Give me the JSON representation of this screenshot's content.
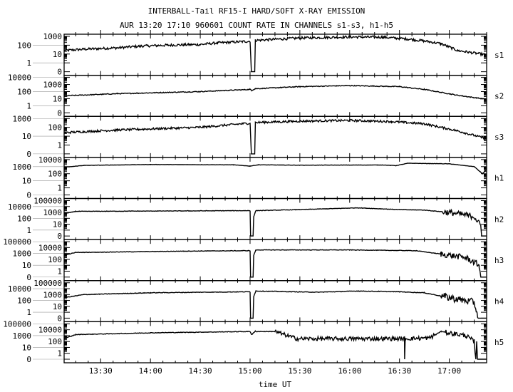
{
  "chart_data": {
    "type": "line",
    "title": "INTERBALL-Tail RF15-I HARD/SOFT X-RAY EMISSION",
    "subtitle": "AUR 13:20 17:10 960601  COUNT RATE IN CHANNELS s1-s3, h1-h5",
    "xlabel": "time UT",
    "x_units": "minutes after 13:00 UT",
    "xlim": [
      8,
      262.5
    ],
    "x_ticks": [
      {
        "value": 30,
        "label": "13:30"
      },
      {
        "value": 60,
        "label": "14:00"
      },
      {
        "value": 90,
        "label": "14:30"
      },
      {
        "value": 120,
        "label": "15:00"
      },
      {
        "value": 150,
        "label": "15:30"
      },
      {
        "value": 180,
        "label": "16:00"
      },
      {
        "value": 210,
        "label": "16:30"
      },
      {
        "value": 240,
        "label": "17:00"
      }
    ],
    "x_minor_step": 7.5,
    "yscale": "log (with 0 level)",
    "panels": [
      {
        "name": "s1",
        "y_ticks": [
          "0",
          "1",
          "10",
          "100",
          "1000"
        ],
        "noise": 0.14,
        "noisy": [],
        "points": [
          [
            8,
            25
          ],
          [
            20,
            35
          ],
          [
            40,
            50
          ],
          [
            55,
            80
          ],
          [
            70,
            100
          ],
          [
            90,
            120
          ],
          [
            100,
            180
          ],
          [
            120,
            280
          ],
          [
            120.8,
            0
          ],
          [
            122.8,
            0
          ],
          [
            123.2,
            350
          ],
          [
            150,
            650
          ],
          [
            180,
            850
          ],
          [
            200,
            800
          ],
          [
            215,
            500
          ],
          [
            225,
            300
          ],
          [
            235,
            150
          ],
          [
            245,
            25
          ],
          [
            262.5,
            8
          ]
        ]
      },
      {
        "name": "s2",
        "y_ticks": [
          "0",
          "1",
          "10",
          "100",
          "1000",
          "10000"
        ],
        "noise": 0.06,
        "noisy": [],
        "points": [
          [
            8,
            25
          ],
          [
            40,
            50
          ],
          [
            90,
            100
          ],
          [
            120,
            200
          ],
          [
            121,
            150
          ],
          [
            123,
            250
          ],
          [
            150,
            500
          ],
          [
            180,
            700
          ],
          [
            210,
            500
          ],
          [
            225,
            200
          ],
          [
            245,
            30
          ],
          [
            262.5,
            8
          ]
        ]
      },
      {
        "name": "s3",
        "y_ticks": [
          "0",
          "1",
          "10",
          "100",
          "1000"
        ],
        "noise": 0.12,
        "noisy": [],
        "points": [
          [
            8,
            25
          ],
          [
            40,
            50
          ],
          [
            90,
            100
          ],
          [
            120,
            300
          ],
          [
            120.8,
            0
          ],
          [
            122.8,
            0
          ],
          [
            123.2,
            350
          ],
          [
            150,
            500
          ],
          [
            180,
            600
          ],
          [
            205,
            450
          ],
          [
            225,
            250
          ],
          [
            245,
            40
          ],
          [
            262.5,
            5
          ]
        ]
      },
      {
        "name": "h1",
        "y_ticks": [
          "0",
          "1",
          "10",
          "100",
          "1000",
          "10000"
        ],
        "noise": 0.02,
        "noisy": [],
        "points": [
          [
            8,
            800
          ],
          [
            20,
            1500
          ],
          [
            60,
            2000
          ],
          [
            110,
            1800
          ],
          [
            120,
            1200
          ],
          [
            125,
            1800
          ],
          [
            150,
            1600
          ],
          [
            200,
            1700
          ],
          [
            208,
            1400
          ],
          [
            215,
            3000
          ],
          [
            240,
            2500
          ],
          [
            255,
            1000
          ],
          [
            260,
            100
          ],
          [
            262.5,
            400
          ]
        ]
      },
      {
        "name": "h2",
        "y_ticks": [
          "0",
          "1",
          "10",
          "100",
          "1000",
          "10000",
          "100000"
        ],
        "noise": 0.04,
        "noisy": [
          [
            235,
            262.5,
            0.5
          ]
        ],
        "points": [
          [
            8,
            600
          ],
          [
            15,
            1500
          ],
          [
            120,
            2000
          ],
          [
            120.3,
            0
          ],
          [
            121.8,
            0
          ],
          [
            122.2,
            200
          ],
          [
            123.5,
            2000
          ],
          [
            150,
            3000
          ],
          [
            185,
            6000
          ],
          [
            210,
            3000
          ],
          [
            225,
            2500
          ],
          [
            240,
            1000
          ],
          [
            255,
            200
          ],
          [
            259,
            5
          ],
          [
            259.5,
            0
          ],
          [
            262.5,
            0
          ]
        ]
      },
      {
        "name": "h3",
        "y_ticks": [
          "0",
          "1",
          "10",
          "100",
          "1000",
          "10000",
          "100000"
        ],
        "noise": 0.04,
        "noisy": [
          [
            235,
            262.5,
            0.5
          ]
        ],
        "points": [
          [
            8,
            500
          ],
          [
            15,
            1500
          ],
          [
            80,
            2500
          ],
          [
            120,
            3000
          ],
          [
            120.3,
            0
          ],
          [
            121.8,
            0
          ],
          [
            122.2,
            500
          ],
          [
            123.5,
            4000
          ],
          [
            180,
            4000
          ],
          [
            220,
            3000
          ],
          [
            235,
            800
          ],
          [
            250,
            200
          ],
          [
            258,
            10
          ],
          [
            259,
            0
          ],
          [
            262.5,
            0
          ]
        ]
      },
      {
        "name": "h4",
        "y_ticks": [
          "0",
          "1",
          "10",
          "100",
          "1000",
          "10000",
          "100000"
        ],
        "noise": 0.05,
        "noisy": [
          [
            235,
            262.5,
            0.6
          ]
        ],
        "points": [
          [
            8,
            300
          ],
          [
            20,
            1000
          ],
          [
            60,
            2000
          ],
          [
            120,
            3000
          ],
          [
            120.3,
            0
          ],
          [
            121.8,
            0
          ],
          [
            122.2,
            500
          ],
          [
            123.5,
            4000
          ],
          [
            160,
            2500
          ],
          [
            185,
            4000
          ],
          [
            210,
            3000
          ],
          [
            225,
            2000
          ],
          [
            240,
            300
          ],
          [
            255,
            50
          ],
          [
            257.5,
            0
          ],
          [
            262.5,
            0
          ]
        ]
      },
      {
        "name": "h5",
        "y_ticks": [
          "0",
          "1",
          "10",
          "100",
          "1000",
          "10000",
          "100000"
        ],
        "noise": 0.05,
        "noisy": [
          [
            135,
            232,
            0.35
          ],
          [
            238,
            256,
            0.4
          ]
        ],
        "points": [
          [
            8,
            300
          ],
          [
            15,
            1500
          ],
          [
            60,
            3000
          ],
          [
            120,
            5000
          ],
          [
            121,
            1500
          ],
          [
            123,
            5000
          ],
          [
            135,
            5000
          ],
          [
            148,
            300
          ],
          [
            213,
            300
          ],
          [
            213.1,
            0
          ],
          [
            213.5,
            300
          ],
          [
            228,
            400
          ],
          [
            235,
            5000
          ],
          [
            250,
            1000
          ],
          [
            255,
            100
          ],
          [
            256,
            0
          ],
          [
            256.5,
            100
          ],
          [
            257,
            0
          ],
          [
            262.5,
            0
          ]
        ]
      }
    ]
  }
}
